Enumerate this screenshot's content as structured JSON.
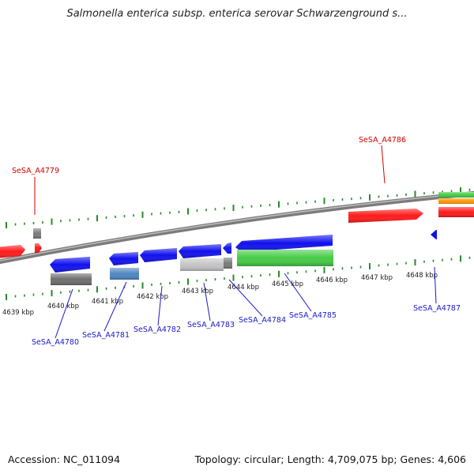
{
  "title": "Salmonella enterica subsp. enterica serovar Schwarzenground s...",
  "footer": {
    "accession_label": "Accession: NC_011094",
    "summary": "Topology: circular; Length: 4,709,075 bp; Genes: 4,606"
  },
  "colors": {
    "forward_label": "#d40000",
    "reverse_label": "#1a1acc",
    "tick": "#2a8a2a",
    "backbone": "#8c8c8c",
    "gene_red": "#ff1a1a",
    "gene_blue": "#1010ee",
    "gene_steelblue": "#4f86c0",
    "gene_gray": "#7a7a7a",
    "gene_lightgray": "#c4c4c4",
    "gene_green": "#44cc44",
    "gene_orange": "#ff9900"
  },
  "kbp_ticks": [
    {
      "text": "4639 kbp"
    },
    {
      "text": "4640 kbp"
    },
    {
      "text": "4641 kbp"
    },
    {
      "text": "4642 kbp"
    },
    {
      "text": "4643 kbp"
    },
    {
      "text": "4644 kbp"
    },
    {
      "text": "4645 kbp"
    },
    {
      "text": "4646 kbp"
    },
    {
      "text": "4647 kbp"
    },
    {
      "text": "4648 kbp"
    }
  ],
  "gene_labels": [
    {
      "name": "SeSA_A4779",
      "strand": "forward"
    },
    {
      "name": "SeSA_A4786",
      "strand": "forward"
    },
    {
      "name": "SeSA_A4780",
      "strand": "reverse"
    },
    {
      "name": "SeSA_A4781",
      "strand": "reverse"
    },
    {
      "name": "SeSA_A4782",
      "strand": "reverse"
    },
    {
      "name": "SeSA_A4783",
      "strand": "reverse"
    },
    {
      "name": "SeSA_A4784",
      "strand": "reverse"
    },
    {
      "name": "SeSA_A4785",
      "strand": "reverse"
    },
    {
      "name": "SeSA_A4787",
      "strand": "reverse"
    }
  ]
}
